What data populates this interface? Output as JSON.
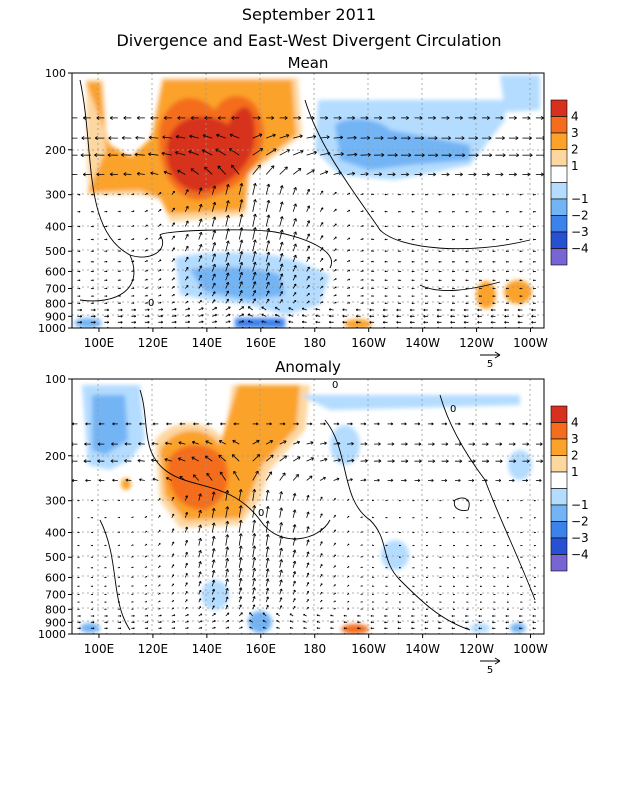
{
  "header": {
    "title": "September 2011",
    "subtitle": "Divergence and East-West Divergent Circulation"
  },
  "chart_data": [
    {
      "type": "heatmap",
      "title": "Mean",
      "x_ticks": [
        "100E",
        "120E",
        "140E",
        "160E",
        "180",
        "160W",
        "140W",
        "120W",
        "100W"
      ],
      "x_tick_lon": [
        100,
        120,
        140,
        160,
        180,
        200,
        220,
        240,
        260
      ],
      "xlim_lon": [
        90,
        265
      ],
      "y_ticks": [
        "100",
        "200",
        "300",
        "400",
        "500",
        "600",
        "700",
        "800",
        "900",
        "1000"
      ],
      "y_tick_values": [
        100,
        200,
        300,
        400,
        500,
        600,
        700,
        800,
        900,
        1000
      ],
      "ylim": [
        100,
        1000
      ],
      "y_scale": "log",
      "colorbar": {
        "labels": [
          "4",
          "3",
          "2",
          "1",
          "−1",
          "−2",
          "−3",
          "−4"
        ],
        "colors": [
          "#d7301f",
          "#f46d1e",
          "#fba22a",
          "#fdd7a0",
          "#ffffff",
          "#b4dcff",
          "#73b4f5",
          "#3c82eb",
          "#2850d2",
          "#7864d2"
        ]
      },
      "vector_reference": "5",
      "contour_labels": [
        "0"
      ]
    },
    {
      "type": "heatmap",
      "title": "Anomaly",
      "x_ticks": [
        "100E",
        "120E",
        "140E",
        "160E",
        "180",
        "160W",
        "140W",
        "120W",
        "100W"
      ],
      "x_tick_lon": [
        100,
        120,
        140,
        160,
        180,
        200,
        220,
        240,
        260
      ],
      "xlim_lon": [
        90,
        265
      ],
      "y_ticks": [
        "100",
        "200",
        "300",
        "400",
        "500",
        "600",
        "700",
        "800",
        "900",
        "1000"
      ],
      "y_tick_values": [
        100,
        200,
        300,
        400,
        500,
        600,
        700,
        800,
        900,
        1000
      ],
      "ylim": [
        100,
        1000
      ],
      "y_scale": "log",
      "colorbar": {
        "labels": [
          "4",
          "3",
          "2",
          "1",
          "−1",
          "−2",
          "−3",
          "−4"
        ],
        "colors": [
          "#d7301f",
          "#f46d1e",
          "#fba22a",
          "#fdd7a0",
          "#ffffff",
          "#b4dcff",
          "#73b4f5",
          "#3c82eb",
          "#2850d2",
          "#7864d2"
        ]
      },
      "vector_reference": "5",
      "contour_labels": [
        "0",
        "0",
        "0"
      ]
    }
  ]
}
